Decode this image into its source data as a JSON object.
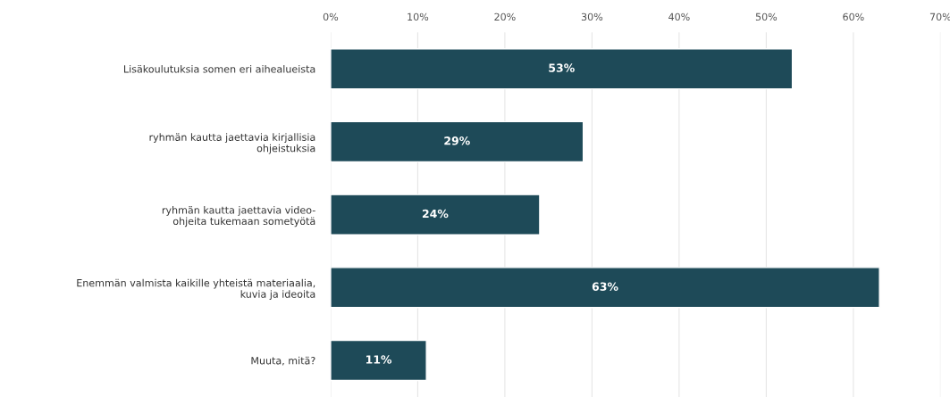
{
  "chart_data": {
    "type": "bar",
    "orientation": "horizontal",
    "categories": [
      "Lisäkoulutuksia somen eri aihealueista",
      "ryhmän kautta jaettavia kirjallisia\nohjeistuksia",
      "ryhmän kautta jaettavia video-\nohjeita tukemaan sometyötä",
      "Enemmän valmista kaikille yhteistä materiaalia,\nkuvia ja ideoita",
      "Muuta, mitä?"
    ],
    "values": [
      53,
      29,
      24,
      63,
      11
    ],
    "value_labels": [
      "53%",
      "29%",
      "24%",
      "63%",
      "11%"
    ],
    "color": "#1e4a58",
    "xlim": [
      0,
      70
    ],
    "xticks": [
      {
        "value": 0,
        "label": "0%"
      },
      {
        "value": 10,
        "label": "10%"
      },
      {
        "value": 20,
        "label": "20%"
      },
      {
        "value": 30,
        "label": "30%"
      },
      {
        "value": 40,
        "label": "40%"
      },
      {
        "value": 50,
        "label": "50%"
      },
      {
        "value": 60,
        "label": "60%"
      },
      {
        "value": 70,
        "label": "70%"
      }
    ],
    "grid": "x"
  }
}
